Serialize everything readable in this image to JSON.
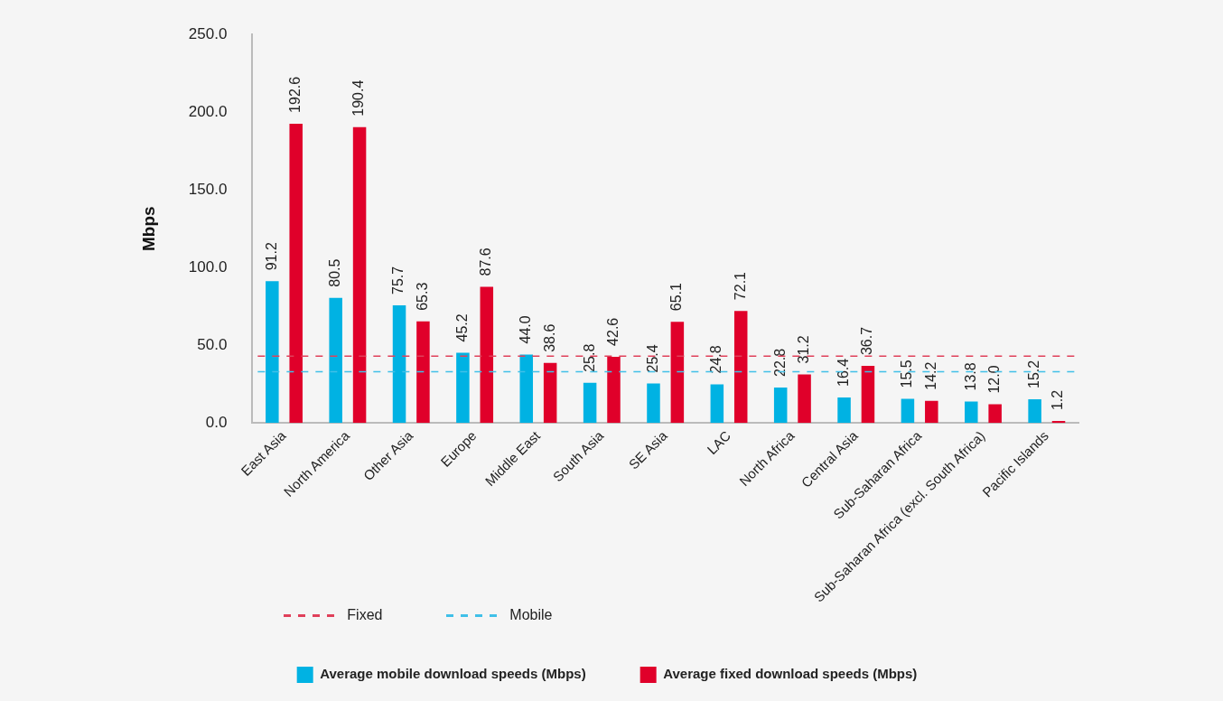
{
  "chart_data": {
    "type": "bar",
    "ylabel": "Mbps",
    "categories": [
      "East Asia",
      "North America",
      "Other Asia",
      "Europe",
      "Middle East",
      "South Asia",
      "SE Asia",
      "LAC",
      "North Africa",
      "Central Asia",
      "Sub-Saharan Africa",
      "Sub-Saharan Africa (excl. South Africa)",
      "Pacific Islands"
    ],
    "series": [
      {
        "name": "Average mobile download speeds (Mbps)",
        "color": "#00b2e3",
        "values": [
          91.2,
          80.5,
          75.7,
          45.2,
          44.0,
          25.8,
          25.4,
          24.8,
          22.8,
          16.4,
          15.5,
          13.8,
          15.2
        ],
        "value_labels": [
          "91.2",
          "80.5",
          "75.7",
          "45.2",
          "44.0",
          "25.8",
          "25.4",
          "24.8",
          "22.8",
          "16.4",
          "15.5",
          "13.8",
          "15.2"
        ]
      },
      {
        "name": "Average fixed download speeds (Mbps)",
        "color": "#e0002a",
        "values": [
          192.6,
          190.4,
          65.3,
          87.6,
          38.6,
          42.6,
          65.1,
          72.1,
          31.2,
          36.7,
          14.2,
          12.0,
          1.2
        ],
        "value_labels": [
          "192.6",
          "190.4",
          "65.3",
          "87.6",
          "38.6",
          "42.6",
          "65.1",
          "72.1",
          "31.2",
          "36.7",
          "14.2",
          "12.0",
          "1.2"
        ]
      }
    ],
    "ylim": [
      0,
      250
    ],
    "yticks": [
      {
        "value": 0,
        "label": "0.0"
      },
      {
        "value": 50,
        "label": "50.0"
      },
      {
        "value": 100,
        "label": "100.0"
      },
      {
        "value": 150,
        "label": "150.0"
      },
      {
        "value": 200,
        "label": "200.0"
      },
      {
        "value": 250,
        "label": "250.0"
      }
    ],
    "ref_lines": [
      {
        "axis": "y",
        "value": 43,
        "label": "Fixed",
        "color": "#e0405a",
        "line_style": "dashed"
      },
      {
        "axis": "y",
        "value": 33,
        "label": "Mobile",
        "color": "#40c0e8",
        "line_style": "dashed"
      }
    ],
    "grid": false,
    "legend": "bottom"
  }
}
